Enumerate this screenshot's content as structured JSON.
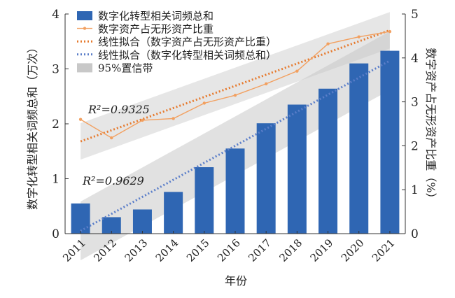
{
  "chart_data": {
    "type": "bar",
    "categories": [
      "2011",
      "2012",
      "2013",
      "2014",
      "2015",
      "2016",
      "2017",
      "2018",
      "2019",
      "2020",
      "2021"
    ],
    "xlabel": "年份",
    "ylabel_left": "数字化转型相关词频总和（万次）",
    "ylabel_right": "数字资产占无形资产比重（%）",
    "ylim_left": [
      0,
      4
    ],
    "ylim_right": [
      0,
      5
    ],
    "yticks_left": [
      "0",
      "1",
      "2",
      "3",
      "4"
    ],
    "yticks_right": [
      "0",
      "1",
      "2",
      "3",
      "4",
      "5"
    ],
    "series": [
      {
        "name": "数字化转型相关词频总和",
        "type": "bar",
        "axis": "left",
        "values": [
          0.55,
          0.3,
          0.44,
          0.76,
          1.21,
          1.55,
          2.01,
          2.35,
          2.64,
          3.1,
          3.33
        ]
      },
      {
        "name": "数字资产占无形资产比重",
        "type": "line",
        "axis": "right",
        "values": [
          2.6,
          2.18,
          2.58,
          2.62,
          2.97,
          3.15,
          3.41,
          3.7,
          4.32,
          4.48,
          4.6
        ]
      },
      {
        "name": "线性拟合（数字化转型相关词频总和）",
        "type": "fit",
        "axis": "left",
        "start": 0.05,
        "end": 3.15
      },
      {
        "name": "线性拟合（数字资产占无形资产比重）",
        "type": "fit",
        "axis": "right",
        "start": 2.1,
        "end": 4.63
      },
      {
        "name": "95%置信带",
        "type": "band"
      }
    ],
    "annotations": {
      "r2_line": "R²=0.9325",
      "r2_bar": "R²=0.9629"
    },
    "colors": {
      "bar": "#2f66b3",
      "line": "#f2a060",
      "fit_line": "#e67a2e",
      "fit_bar": "#5b7ec9",
      "band": "#c8c8c8"
    }
  }
}
